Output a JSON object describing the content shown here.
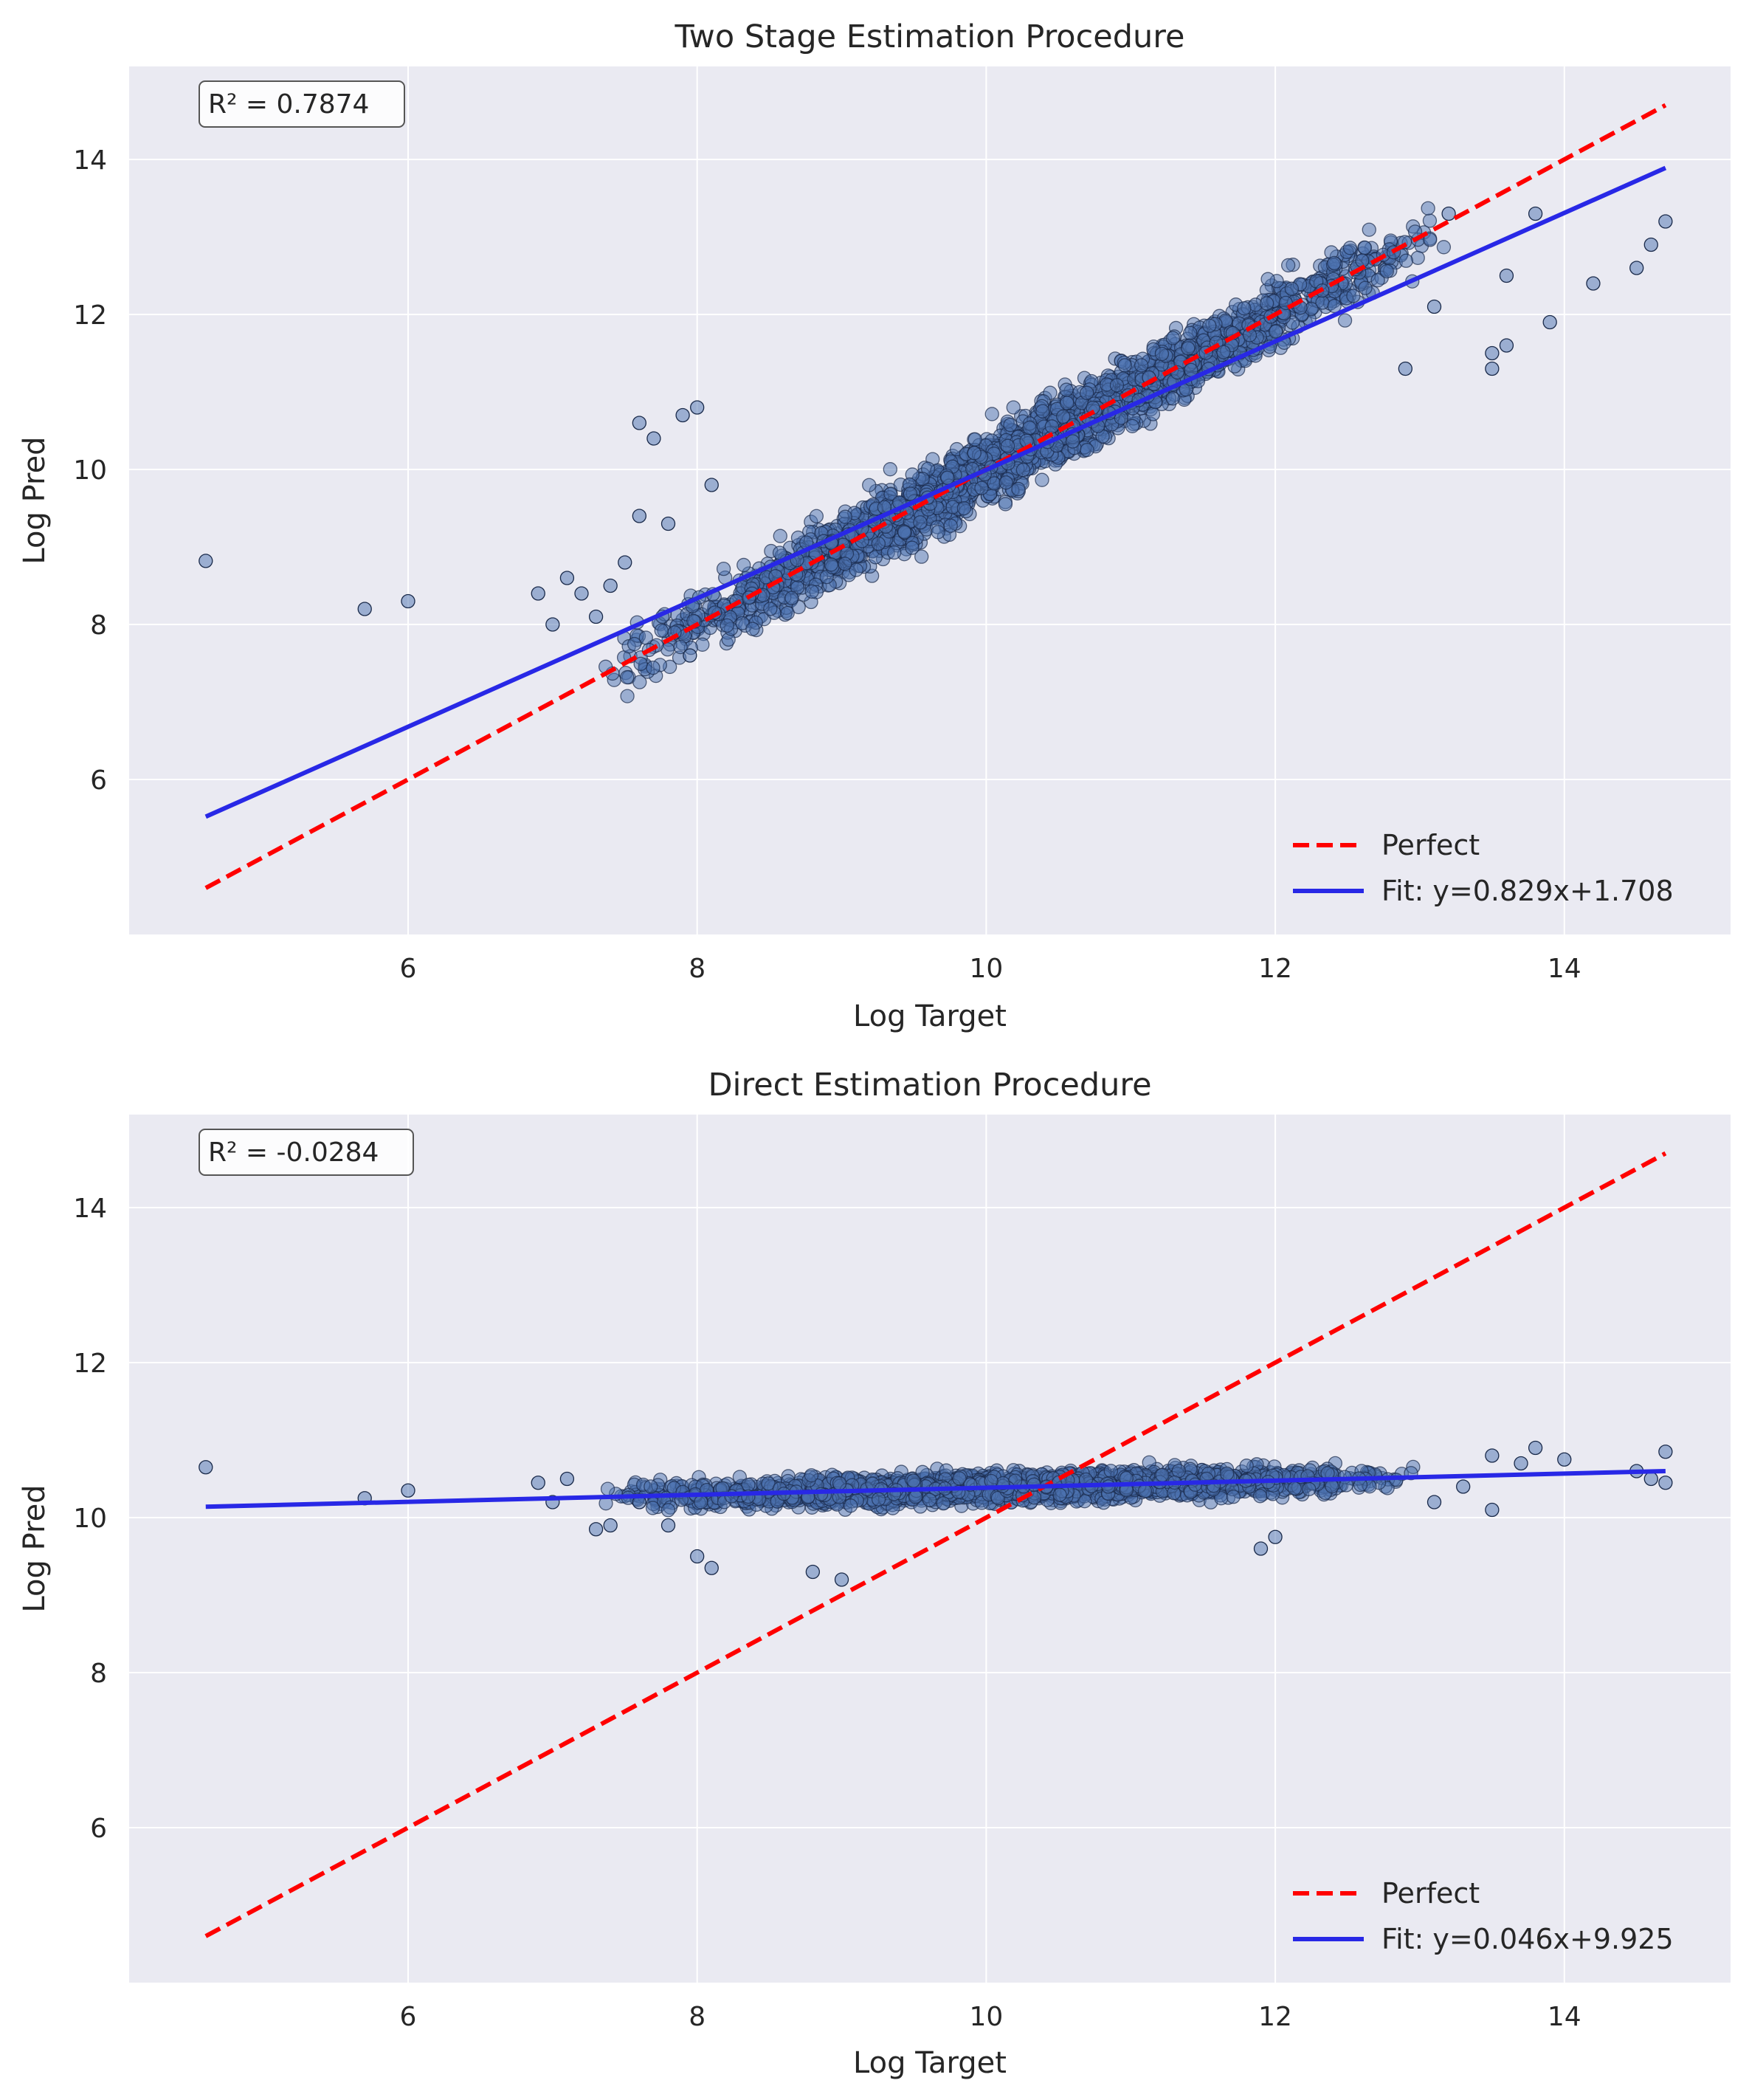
{
  "chart_data": [
    {
      "type": "scatter",
      "title": "Two Stage Estimation Procedure",
      "xlabel": "Log Target",
      "ylabel": "Log Pred",
      "xlim": [
        4.07,
        15.15
      ],
      "ylim": [
        4.0,
        15.2
      ],
      "xticks": [
        6,
        8,
        10,
        12,
        14
      ],
      "yticks": [
        6,
        8,
        10,
        12,
        14
      ],
      "grid": true,
      "annotation": "R² = 0.7874",
      "legend_position": "bottom-right",
      "series": [
        {
          "name": "Perfect",
          "kind": "line",
          "color": "#ff0000",
          "dash": true,
          "x": [
            4.6,
            14.7
          ],
          "y": [
            4.6,
            14.7
          ]
        },
        {
          "name": "Fit: y=0.829x+1.708",
          "kind": "line",
          "color": "#2828e6",
          "dash": false,
          "x": [
            4.6,
            14.7
          ],
          "y": [
            5.52,
            13.89
          ]
        },
        {
          "name": "Data",
          "kind": "points",
          "color": "#4c72b0",
          "edge": "#1a2a4a",
          "x": [
            4.6,
            5.7,
            6.0,
            6.9,
            7.0,
            7.1,
            7.2,
            7.3,
            7.4,
            7.5,
            7.6,
            7.6,
            7.7,
            7.8,
            7.9,
            8.0,
            7.95,
            8.1,
            13.1,
            13.5,
            13.5,
            13.6,
            13.9,
            14.2,
            14.5,
            14.6,
            14.7,
            13.8,
            12.9,
            13.2,
            13.6
          ],
          "y": [
            8.82,
            8.2,
            8.3,
            8.4,
            8.0,
            8.6,
            8.4,
            8.1,
            8.5,
            8.8,
            10.6,
            9.4,
            10.4,
            9.3,
            10.7,
            10.8,
            7.6,
            9.8,
            12.1,
            11.3,
            11.5,
            11.6,
            11.9,
            12.4,
            12.6,
            12.9,
            13.2,
            13.3,
            11.3,
            13.3,
            12.5
          ],
          "cloud": {
            "x_range": [
              7.3,
              13.2
            ],
            "slope": 1.0,
            "intercept": 0.0,
            "spread": 0.55
          }
        }
      ]
    },
    {
      "type": "scatter",
      "title": "Direct Estimation Procedure",
      "xlabel": "Log Target",
      "ylabel": "Log Pred",
      "xlim": [
        4.07,
        15.15
      ],
      "ylim": [
        4.0,
        15.2
      ],
      "xticks": [
        6,
        8,
        10,
        12,
        14
      ],
      "yticks": [
        6,
        8,
        10,
        12,
        14
      ],
      "grid": true,
      "annotation": "R² = -0.0284",
      "legend_position": "bottom-right",
      "series": [
        {
          "name": "Perfect",
          "kind": "line",
          "color": "#ff0000",
          "dash": true,
          "x": [
            4.6,
            14.7
          ],
          "y": [
            4.6,
            14.7
          ]
        },
        {
          "name": "Fit: y=0.046x+9.925",
          "kind": "line",
          "color": "#2828e6",
          "dash": false,
          "x": [
            4.6,
            14.7
          ],
          "y": [
            10.14,
            10.6
          ]
        },
        {
          "name": "Data",
          "kind": "points",
          "color": "#4c72b0",
          "edge": "#1a2a4a",
          "x": [
            4.6,
            5.7,
            6.0,
            6.9,
            7.0,
            7.1,
            7.3,
            7.4,
            7.6,
            7.8,
            8.0,
            8.1,
            8.8,
            9.0,
            11.9,
            12.0,
            13.1,
            13.3,
            13.5,
            13.5,
            13.7,
            13.8,
            14.0,
            14.5,
            14.6,
            14.7,
            14.7
          ],
          "y": [
            10.65,
            10.25,
            10.35,
            10.45,
            10.2,
            10.5,
            9.85,
            9.9,
            10.2,
            9.9,
            9.5,
            9.35,
            9.3,
            9.2,
            9.6,
            9.75,
            10.2,
            10.4,
            10.8,
            10.1,
            10.7,
            10.9,
            10.75,
            10.6,
            10.5,
            10.85,
            10.45
          ],
          "cloud": {
            "x_range": [
              7.3,
              13.0
            ],
            "slope": 0.046,
            "intercept": 9.925,
            "spread": 0.22
          }
        }
      ]
    }
  ]
}
